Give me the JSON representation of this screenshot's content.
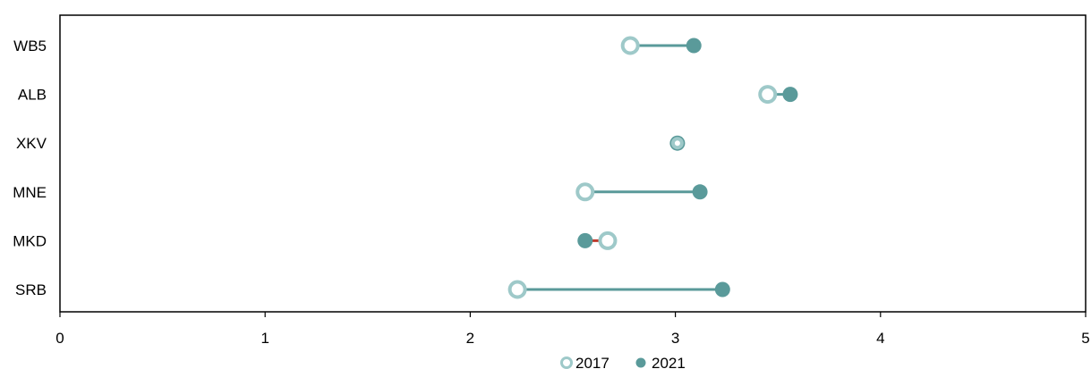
{
  "chart_data": {
    "type": "dumbbell",
    "categories": [
      "WB5",
      "ALB",
      "XKV",
      "MNE",
      "MKD",
      "SRB"
    ],
    "series": [
      {
        "name": "2017",
        "values": [
          2.78,
          3.45,
          3.01,
          2.56,
          2.67,
          2.23
        ],
        "color": "#9ec9c9",
        "marker": "hollow-circle"
      },
      {
        "name": "2021",
        "values": [
          3.09,
          3.56,
          3.01,
          3.12,
          2.56,
          3.23
        ],
        "color": "#5a9a9a",
        "marker": "filled-circle"
      }
    ],
    "connector_colors": {
      "increase": "#5a9a9a",
      "decrease": "#c0392b"
    },
    "x_ticks": [
      "0",
      "1",
      "2",
      "3",
      "4",
      "5"
    ],
    "xlim": [
      0,
      5
    ],
    "orientation": "horizontal",
    "grid": false,
    "legend_position": "bottom-center",
    "title": "",
    "xlabel": "",
    "ylabel": ""
  }
}
